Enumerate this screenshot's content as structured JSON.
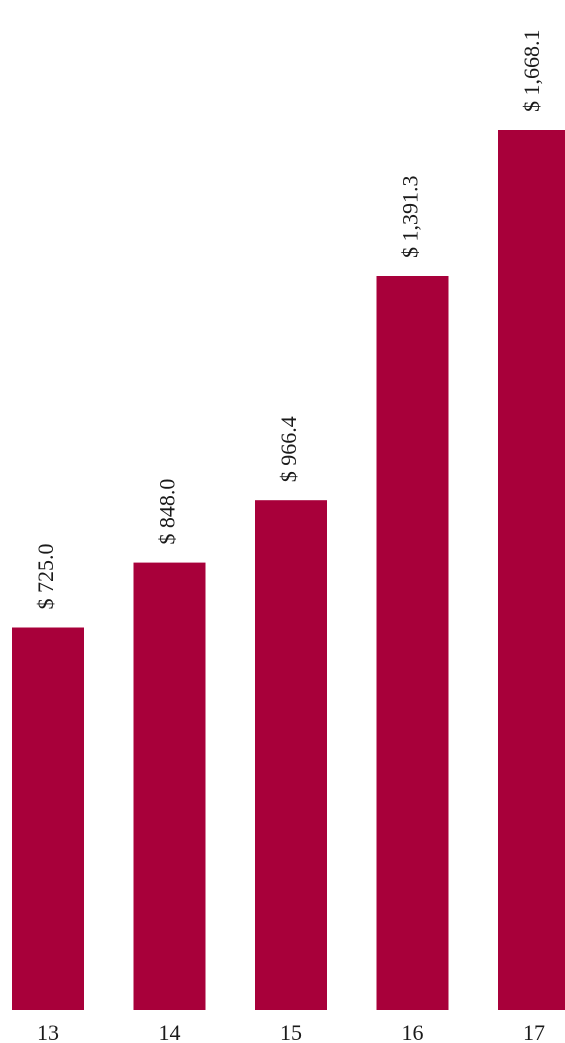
{
  "chart_data": {
    "type": "bar",
    "categories": [
      "13",
      "14",
      "15",
      "16",
      "17"
    ],
    "values": [
      725.0,
      848.0,
      966.4,
      1391.3,
      1668.1
    ],
    "value_labels": [
      "$ 725.0",
      "$ 848.0",
      "$ 966.4",
      "$ 1,391.3",
      "$ 1,668.1"
    ],
    "title": "",
    "xlabel": "",
    "ylabel": "",
    "ylim": [
      0,
      1800
    ],
    "grid": false,
    "bar_color": "#A8003A"
  }
}
